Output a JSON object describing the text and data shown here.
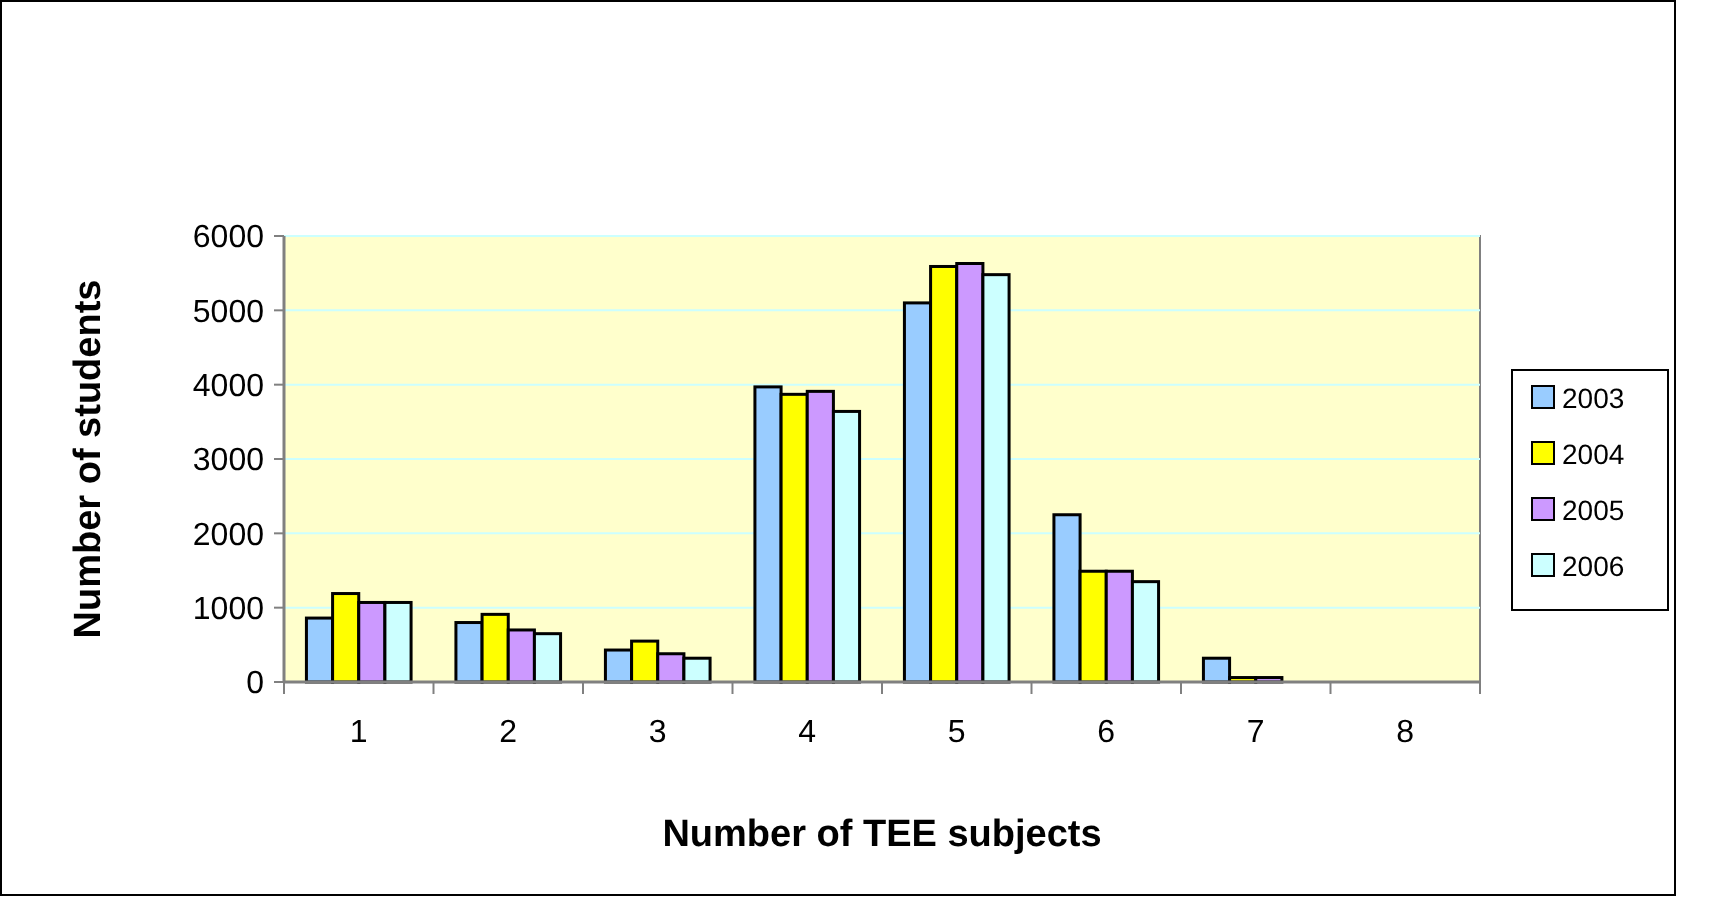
{
  "chart_data": {
    "type": "bar",
    "xlabel": "Number of TEE subjects",
    "ylabel": "Number of students",
    "categories": [
      "1",
      "2",
      "3",
      "4",
      "5",
      "6",
      "7",
      "8"
    ],
    "series": [
      {
        "name": "2003",
        "color": "#99ccff",
        "values": [
          860,
          800,
          430,
          3970,
          5100,
          2250,
          320,
          0
        ]
      },
      {
        "name": "2004",
        "color": "#ffff00",
        "values": [
          1190,
          910,
          550,
          3870,
          5590,
          1490,
          60,
          0
        ]
      },
      {
        "name": "2005",
        "color": "#cc99ff",
        "values": [
          1070,
          700,
          380,
          3910,
          5630,
          1490,
          60,
          0
        ]
      },
      {
        "name": "2006",
        "color": "#ccffff",
        "values": [
          1070,
          650,
          320,
          3640,
          5480,
          1350,
          0,
          0
        ]
      }
    ],
    "ylim": [
      0,
      6000
    ],
    "yticks": [
      0,
      1000,
      2000,
      3000,
      4000,
      5000,
      6000
    ],
    "grid": "y",
    "legend": "right"
  }
}
